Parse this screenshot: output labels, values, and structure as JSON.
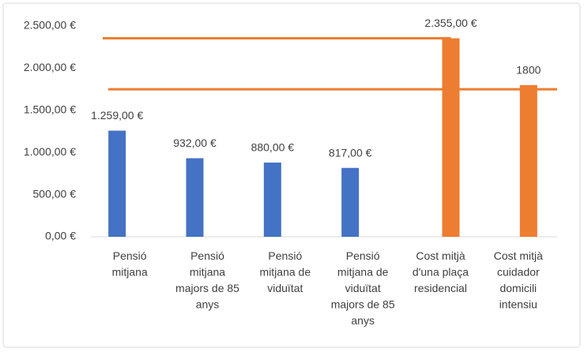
{
  "chart_data": {
    "type": "bar",
    "categories": [
      "Pensió\nmitjana",
      "Pensió\nmitjana\nmajors de 85\nanys",
      "Pensió\nmitjana de\nviduïtat",
      "Pensió\nmitjana de\nviduïtat\nmajors de 85\nanys",
      "Cost mitjà\nd'una plaça\nresidencial",
      "Cost mitjà\ncuidador\ndomicili\nintensiu"
    ],
    "series": [
      {
        "color": "#4472c4",
        "values": [
          1259,
          932,
          880,
          817,
          null,
          null
        ],
        "value_labels": [
          "1.259,00 €",
          "932,00 €",
          "880,00 €",
          "817,00 €",
          null,
          null
        ]
      },
      {
        "color": "#ed7d31",
        "values": [
          null,
          null,
          null,
          null,
          2355,
          1800
        ],
        "value_labels": [
          null,
          null,
          null,
          null,
          "2.355,00 €",
          "1800"
        ]
      }
    ],
    "reference_lines": [
      2355,
      1750
    ],
    "reference_color": "#ed7d31",
    "ylim": [
      0,
      2500
    ],
    "yticks": [
      {
        "value": 0,
        "label": "0,00 €"
      },
      {
        "value": 500,
        "label": "500,00 €"
      },
      {
        "value": 1000,
        "label": "1.000,00 €"
      },
      {
        "value": 1500,
        "label": "1.500,00 €"
      },
      {
        "value": 2000,
        "label": "2.000,00 €"
      },
      {
        "value": 2500,
        "label": "2.500,00 €"
      }
    ],
    "grid": false
  }
}
